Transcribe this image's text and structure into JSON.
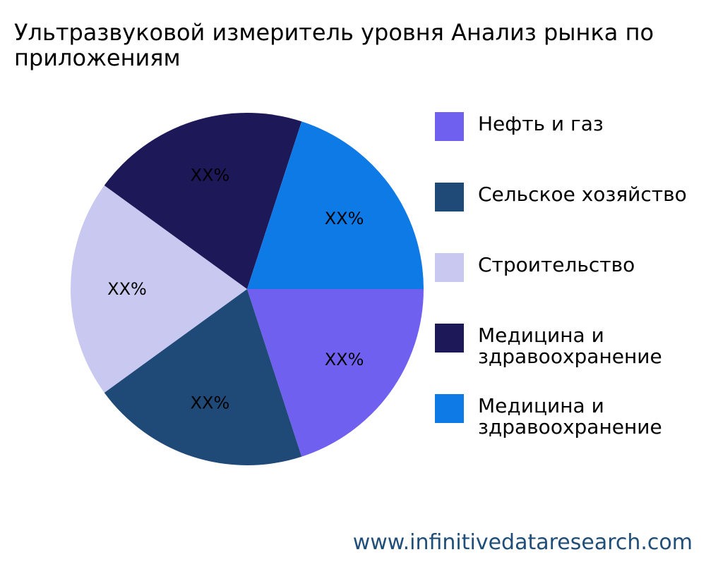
{
  "title": {
    "line1": "Ультразвуковой измеритель уровня Анализ рынка по",
    "line2": "приложениям"
  },
  "chart_data": {
    "type": "pie",
    "title": "Ультразвуковой измеритель уровня Анализ рынка по приложениям",
    "categories": [
      "Нефть и газ",
      "Сельское хозяйство",
      "Строительство",
      "Медицина и здравоохранение",
      "Медицина и здравоохранение"
    ],
    "values": [
      20,
      20,
      20,
      20,
      20
    ],
    "slice_labels": [
      "XX%",
      "XX%",
      "XX%",
      "XX%",
      "XX%"
    ],
    "colors": [
      "#7060f0",
      "#1f4a78",
      "#c8c8f0",
      "#1d1857",
      "#0e7ae6"
    ],
    "start_angle_deg": 0,
    "direction": "clockwise",
    "legend_position": "right"
  },
  "legend": [
    {
      "label": "Нефть и газ",
      "color": "#7060f0"
    },
    {
      "label": "Сельское хозяйство",
      "color": "#1f4a78"
    },
    {
      "label": "Строительство",
      "color": "#c8c8f0"
    },
    {
      "label": "Медицина и здравоохранение",
      "color": "#1d1857"
    },
    {
      "label": "Медицина и здравоохранение",
      "color": "#0e7ae6"
    }
  ],
  "footer": "www.infinitivedataresearch.com"
}
